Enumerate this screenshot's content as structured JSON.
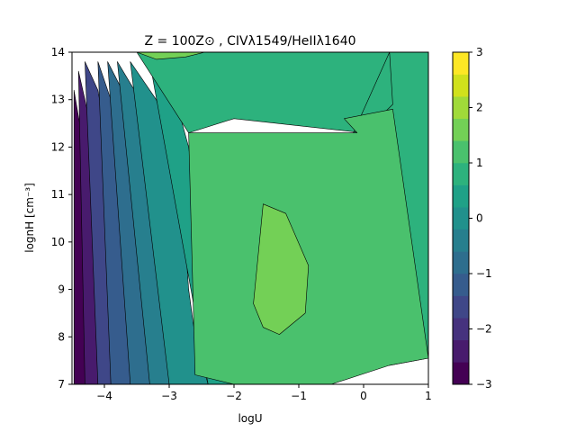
{
  "chart_data": {
    "type": "heatmap",
    "subtype": "filled-contour",
    "title": "Z = 100Z⊙ , CIVλ1549/HeIIλ1640",
    "xlabel": "logU",
    "ylabel": "lognH [cm⁻³]",
    "xlim": [
      -4.5,
      1.0
    ],
    "ylim": [
      7,
      14
    ],
    "x_ticks": [
      -4,
      -3,
      -2,
      -1,
      0,
      1
    ],
    "y_ticks": [
      7,
      8,
      9,
      10,
      11,
      12,
      13,
      14
    ],
    "grid": false,
    "colorbar": {
      "range": [
        -3,
        3
      ],
      "levels": [
        -3.0,
        -2.6,
        -2.2,
        -1.8,
        -1.4,
        -1.0,
        -0.6,
        -0.2,
        0.2,
        0.6,
        1.0,
        1.4,
        1.8,
        2.2,
        2.6,
        3.0
      ],
      "ticks": [
        -3,
        -2,
        -1,
        0,
        1,
        2,
        3
      ],
      "colors": [
        "#440154",
        "#482777",
        "#3f4a8a",
        "#31678e",
        "#26838f",
        "#1f9d8a",
        "#27ad81",
        "#35b779",
        "#6cce5a",
        "#b6de2b",
        "#dde318"
      ],
      "band_colors": [
        "#440154",
        "#481b6d",
        "#46327e",
        "#3f4788",
        "#365c8d",
        "#2e6e8e",
        "#277f8e",
        "#21918c",
        "#1fa187",
        "#2db27d",
        "#4ac16d",
        "#73d056",
        "#a0da39",
        "#d0e11c",
        "#fde725"
      ]
    },
    "contour_bands": [
      {
        "level_range": [
          -3.0,
          -2.6
        ],
        "color": "#440154",
        "boundary": [
          [
            -4.47,
            7.0
          ],
          [
            -4.3,
            7.0
          ],
          [
            -4.3,
            8.5
          ],
          [
            -4.28,
            10.0
          ],
          [
            -4.28,
            11.0
          ],
          [
            -4.32,
            12.0
          ],
          [
            -4.42,
            12.8
          ],
          [
            -4.47,
            13.2
          ]
        ]
      },
      {
        "level_range": [
          -2.6,
          -2.2
        ],
        "color": "#481b6d",
        "boundary": [
          [
            -4.3,
            7.0
          ],
          [
            -4.1,
            7.0
          ],
          [
            -4.1,
            8.5
          ],
          [
            -4.08,
            10.0
          ],
          [
            -4.1,
            11.0
          ],
          [
            -4.15,
            12.0
          ],
          [
            -4.3,
            13.0
          ],
          [
            -4.4,
            13.6
          ]
        ]
      },
      {
        "level_range": [
          -2.2,
          -1.8
        ],
        "color": "#3f4788",
        "boundary": [
          [
            -4.1,
            7.0
          ],
          [
            -3.9,
            7.0
          ],
          [
            -3.9,
            8.5
          ],
          [
            -3.88,
            10.0
          ],
          [
            -3.9,
            11.0
          ],
          [
            -3.95,
            12.0
          ],
          [
            -4.1,
            13.2
          ],
          [
            -4.3,
            13.8
          ]
        ]
      },
      {
        "level_range": [
          -1.8,
          -1.4
        ],
        "color": "#365c8d",
        "boundary": [
          [
            -3.9,
            7.0
          ],
          [
            -3.6,
            7.0
          ],
          [
            -3.6,
            8.5
          ],
          [
            -3.6,
            10.0
          ],
          [
            -3.65,
            11.0
          ],
          [
            -3.75,
            12.0
          ],
          [
            -3.9,
            13.0
          ],
          [
            -4.1,
            13.8
          ]
        ]
      },
      {
        "level_range": [
          -1.4,
          -1.0
        ],
        "color": "#2e6e8e",
        "boundary": [
          [
            -3.6,
            7.0
          ],
          [
            -3.3,
            7.0
          ],
          [
            -3.2,
            8.5
          ],
          [
            -3.2,
            10.0
          ],
          [
            -3.3,
            11.0
          ],
          [
            -3.45,
            12.0
          ],
          [
            -3.65,
            13.0
          ],
          [
            -3.95,
            13.8
          ]
        ]
      },
      {
        "level_range": [
          -1.0,
          -0.6
        ],
        "color": "#277f8e",
        "boundary": [
          [
            -3.3,
            7.0
          ],
          [
            -3.0,
            7.0
          ],
          [
            -2.95,
            8.5
          ],
          [
            -2.9,
            10.0
          ],
          [
            -3.0,
            11.0
          ],
          [
            -3.2,
            12.0
          ],
          [
            -3.45,
            13.0
          ],
          [
            -3.8,
            13.8
          ]
        ]
      },
      {
        "level_range": [
          -0.6,
          -0.2
        ],
        "color": "#21918c",
        "boundary": [
          [
            -3.0,
            7.0
          ],
          [
            -2.4,
            7.0
          ],
          [
            -2.6,
            8.0
          ],
          [
            -2.7,
            9.0
          ],
          [
            -2.75,
            10.0
          ],
          [
            -2.8,
            11.0
          ],
          [
            -2.95,
            12.0
          ],
          [
            -3.2,
            13.0
          ],
          [
            -3.6,
            13.8
          ]
        ]
      },
      {
        "level_range": [
          -0.2,
          0.2
        ],
        "color": "#1fa187",
        "boundary": [
          [
            -2.4,
            7.0
          ],
          [
            -1.9,
            7.0
          ],
          [
            -2.3,
            7.5
          ],
          [
            -2.5,
            8.5
          ],
          [
            -2.55,
            10.0
          ],
          [
            -2.6,
            11.0
          ],
          [
            -2.7,
            12.0
          ],
          [
            -2.9,
            13.0
          ],
          [
            -3.3,
            13.8
          ]
        ]
      },
      {
        "level_range": [
          0.2,
          0.6
        ],
        "color": "#2db27d",
        "boundary": [
          [
            -1.9,
            7.0
          ],
          [
            -0.5,
            7.0
          ],
          [
            -0.2,
            7.35
          ],
          [
            0.4,
            7.4
          ],
          [
            1.0,
            7.55
          ],
          [
            1.0,
            14.0
          ],
          [
            -3.5,
            14.0
          ],
          [
            -2.7,
            12.3
          ],
          [
            -2.0,
            12.6
          ],
          [
            0.0,
            12.3
          ],
          [
            0.45,
            12.9
          ],
          [
            0.4,
            14.0
          ]
        ]
      },
      {
        "level_range": [
          0.6,
          1.0
        ],
        "color": "#4ac16d",
        "boundary": [
          [
            -2.6,
            7.2
          ],
          [
            -2.0,
            7.0
          ],
          [
            -0.5,
            7.0
          ],
          [
            0.4,
            7.4
          ],
          [
            1.0,
            7.55
          ],
          [
            0.45,
            12.8
          ],
          [
            -0.3,
            12.6
          ],
          [
            -0.1,
            12.3
          ],
          [
            -2.7,
            12.3
          ]
        ]
      },
      {
        "level_range": [
          1.0,
          1.4
        ],
        "color": "#73d056",
        "boundary": [
          [
            -1.7,
            8.7
          ],
          [
            -1.55,
            10.8
          ],
          [
            -1.2,
            10.6
          ],
          [
            -0.85,
            9.5
          ],
          [
            -0.9,
            8.5
          ],
          [
            -1.3,
            8.05
          ],
          [
            -1.55,
            8.2
          ]
        ]
      },
      {
        "level_range": [
          1.0,
          1.4
        ],
        "color": "#73d056",
        "boundary": [
          [
            -3.5,
            14.0
          ],
          [
            -3.2,
            13.85
          ],
          [
            -2.75,
            13.9
          ],
          [
            -2.45,
            14.0
          ]
        ]
      }
    ]
  }
}
